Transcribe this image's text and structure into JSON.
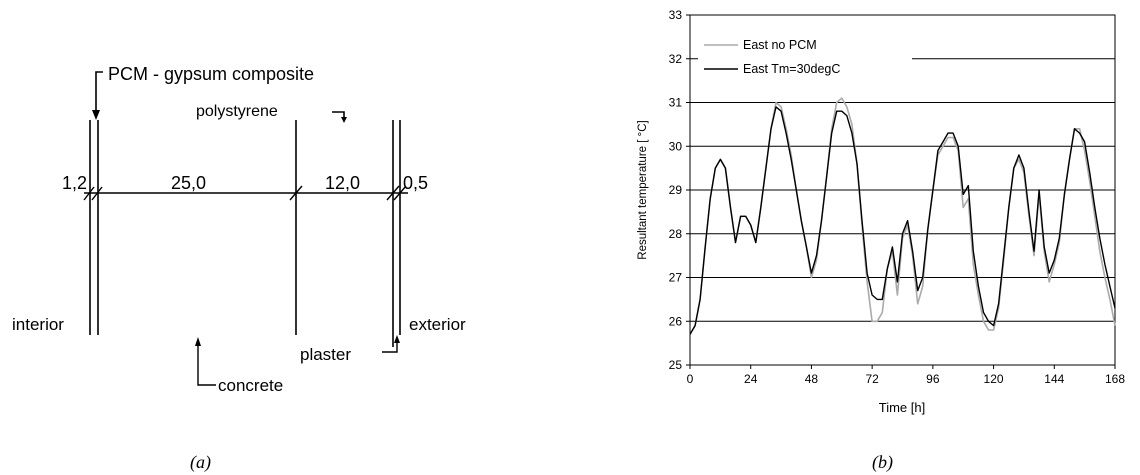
{
  "diagram": {
    "pcm_label": "PCM - gypsum composite",
    "polystyrene_label": "polystyrene",
    "dim_1": "1,2",
    "dim_2": "25,0",
    "dim_3": "12,0",
    "dim_4": "0,5",
    "interior_label": "interior",
    "exterior_label": "exterior",
    "plaster_label": "plaster",
    "concrete_label": "concrete",
    "caption": "(a)"
  },
  "chart_data": {
    "type": "line",
    "ylabel": "Resultant temperature [  °C]",
    "xlabel": "Time [h]",
    "xlim": [
      0,
      168
    ],
    "ylim": [
      25,
      33
    ],
    "xticks": [
      0,
      24,
      48,
      72,
      96,
      120,
      144,
      168
    ],
    "yticks": [
      25,
      26,
      27,
      28,
      29,
      30,
      31,
      32,
      33
    ],
    "grid": "horizontal",
    "legend": "top-left",
    "caption": "(b)",
    "x": [
      0,
      2,
      4,
      6,
      8,
      10,
      12,
      14,
      16,
      18,
      20,
      22,
      24,
      26,
      28,
      30,
      32,
      34,
      36,
      38,
      40,
      42,
      44,
      46,
      48,
      50,
      52,
      54,
      56,
      58,
      60,
      62,
      64,
      66,
      68,
      70,
      72,
      74,
      76,
      78,
      80,
      82,
      84,
      86,
      88,
      90,
      92,
      94,
      96,
      98,
      100,
      102,
      104,
      106,
      108,
      110,
      112,
      114,
      116,
      118,
      120,
      122,
      124,
      126,
      128,
      130,
      132,
      134,
      136,
      138,
      140,
      142,
      144,
      146,
      148,
      150,
      152,
      154,
      156,
      158,
      160,
      162,
      164,
      166,
      168
    ],
    "series": [
      {
        "name": "East no PCM",
        "color": "#aaaaaa",
        "values": [
          25.7,
          25.9,
          26.5,
          27.7,
          28.8,
          29.5,
          29.7,
          29.5,
          28.6,
          27.8,
          28.4,
          28.4,
          28.2,
          27.8,
          28.6,
          29.5,
          30.4,
          31.0,
          30.9,
          30.4,
          29.8,
          29.0,
          28.3,
          27.7,
          27.0,
          27.4,
          28.3,
          29.3,
          30.4,
          31.0,
          31.1,
          30.9,
          30.5,
          29.6,
          28.2,
          26.9,
          26.0,
          26.0,
          26.2,
          27.2,
          27.6,
          26.6,
          27.9,
          28.2,
          27.5,
          26.4,
          26.8,
          28.1,
          29.0,
          29.8,
          30.0,
          30.2,
          30.2,
          29.9,
          28.6,
          28.8,
          27.3,
          26.6,
          26.0,
          25.8,
          25.8,
          26.3,
          27.4,
          28.6,
          29.5,
          29.7,
          29.4,
          28.4,
          27.5,
          28.9,
          27.6,
          26.9,
          27.3,
          27.8,
          28.9,
          29.7,
          30.4,
          30.4,
          29.9,
          29.2,
          28.4,
          27.6,
          27.0,
          26.5,
          25.9
        ]
      },
      {
        "name": "East Tm=30degC",
        "color": "#000000",
        "values": [
          25.7,
          25.9,
          26.5,
          27.7,
          28.8,
          29.5,
          29.7,
          29.5,
          28.6,
          27.8,
          28.4,
          28.4,
          28.2,
          27.8,
          28.6,
          29.5,
          30.4,
          30.9,
          30.8,
          30.3,
          29.7,
          29.0,
          28.3,
          27.7,
          27.1,
          27.5,
          28.3,
          29.3,
          30.3,
          30.8,
          30.8,
          30.7,
          30.3,
          29.6,
          28.3,
          27.1,
          26.6,
          26.5,
          26.5,
          27.2,
          27.7,
          26.9,
          28.0,
          28.3,
          27.6,
          26.7,
          27.0,
          28.1,
          29.0,
          29.9,
          30.1,
          30.3,
          30.3,
          30.0,
          28.9,
          29.1,
          27.6,
          26.8,
          26.2,
          26.0,
          25.9,
          26.4,
          27.5,
          28.6,
          29.5,
          29.8,
          29.5,
          28.5,
          27.6,
          29.0,
          27.7,
          27.1,
          27.4,
          27.9,
          28.9,
          29.7,
          30.4,
          30.3,
          30.1,
          29.4,
          28.6,
          27.9,
          27.3,
          26.8,
          26.3
        ]
      }
    ]
  }
}
